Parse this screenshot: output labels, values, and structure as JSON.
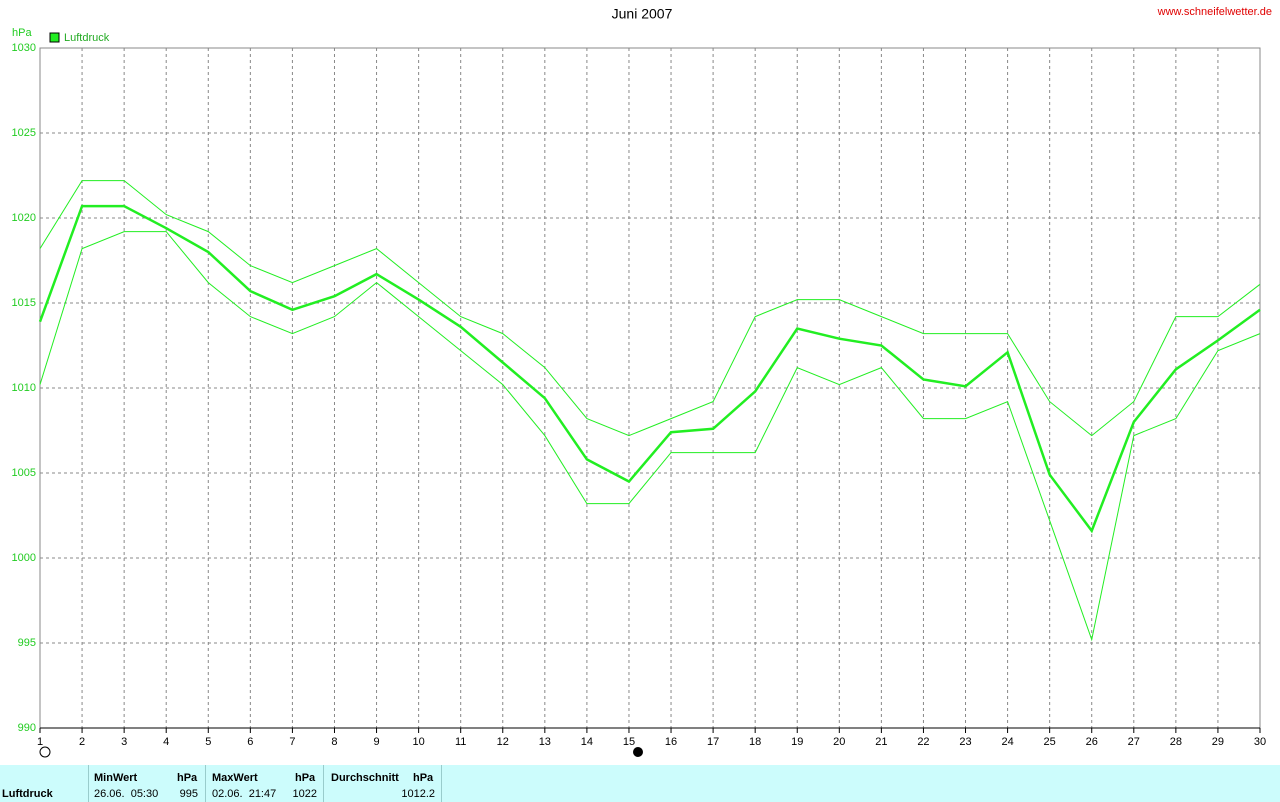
{
  "chart_data": {
    "type": "line",
    "title": "Juni 2007",
    "source": "www.schneifelwetter.de",
    "y_label": "hPa",
    "x": [
      1,
      2,
      3,
      4,
      5,
      6,
      7,
      8,
      9,
      10,
      11,
      12,
      13,
      14,
      15,
      16,
      17,
      18,
      19,
      20,
      21,
      22,
      23,
      24,
      25,
      26,
      27,
      28,
      29,
      30
    ],
    "xlim": [
      1,
      30
    ],
    "xticks": [
      1,
      2,
      3,
      4,
      5,
      6,
      7,
      8,
      9,
      10,
      11,
      12,
      13,
      14,
      15,
      16,
      17,
      18,
      19,
      20,
      21,
      22,
      23,
      24,
      25,
      26,
      27,
      28,
      29,
      30
    ],
    "ylim": [
      990,
      1030
    ],
    "yticks": [
      990,
      995,
      1000,
      1005,
      1010,
      1015,
      1020,
      1025,
      1030
    ],
    "grid": true,
    "legend": "top-left",
    "series": [
      {
        "name": "Luftdruck",
        "color": "#22ee22",
        "values": [
          1013.9,
          1020.7,
          1020.7,
          1019.4,
          1018,
          1015.7,
          1014.6,
          1015.4,
          1016.7,
          1015.2,
          1013.6,
          1011.5,
          1009.4,
          1005.8,
          1004.5,
          1007.4,
          1007.6,
          1009.8,
          1013.5,
          1012.9,
          1012.5,
          1010.5,
          1010.1,
          1012.1,
          1004.9,
          1001.6,
          1008,
          1011.1,
          1012.8,
          1014.6
        ]
      },
      {
        "color": "#22ee22",
        "values": [
          1018.2,
          1022.2,
          1022.2,
          1020.2,
          1019.2,
          1017.2,
          1016.2,
          1017.2,
          1018.2,
          1016.2,
          1014.2,
          1013.2,
          1011.2,
          1008.2,
          1007.2,
          1008.2,
          1009.2,
          1014.2,
          1015.2,
          1015.2,
          1014.2,
          1013.2,
          1013.2,
          1013.2,
          1009.2,
          1007.2,
          1009.2,
          1014.2,
          1014.2,
          1016.1
        ]
      },
      {
        "color": "#22ee22",
        "values": [
          1010.2,
          1018.2,
          1019.2,
          1019.2,
          1016.2,
          1014.2,
          1013.2,
          1014.2,
          1016.2,
          1014.2,
          1012.2,
          1010.2,
          1007.2,
          1003.2,
          1003.2,
          1006.2,
          1006.2,
          1006.2,
          1011.2,
          1010.2,
          1011.2,
          1008.2,
          1008.2,
          1009.2,
          1002.2,
          995.2,
          1007.2,
          1008.2,
          1012.2,
          1013.2
        ]
      }
    ]
  },
  "table": {
    "header": [
      "MinWert",
      "hPa",
      "MaxWert",
      "hPa",
      "Durchschnitt",
      "hPa"
    ],
    "rows": [
      [
        "Luftdruck",
        "26.06.  05:30",
        "995",
        "02.06.  21:47",
        "1022",
        "1012.2"
      ]
    ]
  }
}
